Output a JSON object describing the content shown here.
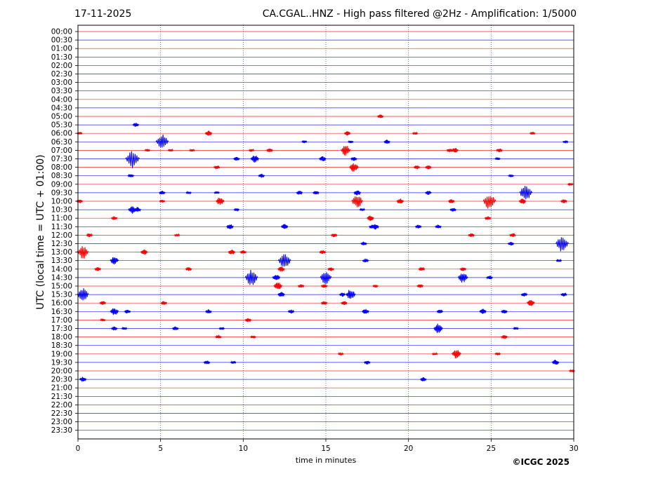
{
  "header": {
    "date": "17-11-2025",
    "title": "CA.CGAL..HNZ - High pass filtered @2Hz - Amplification: 1/5000"
  },
  "footer": {
    "copyright": "©ICGC 2025"
  },
  "chart_data": {
    "type": "line",
    "xlabel": "time in minutes",
    "ylabel": "UTC (local time = UTC + 01:00)",
    "xlim": [
      0,
      30
    ],
    "x_ticks": [
      "0",
      "5",
      "10",
      "15",
      "20",
      "25",
      "30"
    ],
    "x_grid": [
      5,
      10,
      15,
      20,
      25
    ],
    "row_colors": [
      "#ff0000",
      "#0000ff"
    ],
    "rows": [
      "00:00",
      "00:30",
      "01:00",
      "01:30",
      "02:00",
      "02:30",
      "03:00",
      "03:30",
      "04:00",
      "04:30",
      "05:00",
      "05:30",
      "06:00",
      "06:30",
      "07:00",
      "07:30",
      "08:00",
      "08:30",
      "09:00",
      "09:30",
      "10:00",
      "10:30",
      "11:00",
      "11:30",
      "12:00",
      "12:30",
      "13:00",
      "13:30",
      "14:00",
      "14:30",
      "15:00",
      "15:30",
      "16:00",
      "16:30",
      "17:00",
      "17:30",
      "18:00",
      "18:30",
      "19:00",
      "19:30",
      "20:00",
      "20:30",
      "21:00",
      "21:30",
      "22:00",
      "22:30",
      "23:00",
      "23:30"
    ],
    "events": [
      {
        "row": "05:00",
        "t": 18.3,
        "a": 3
      },
      {
        "row": "05:30",
        "t": 3.5,
        "a": 3
      },
      {
        "row": "06:00",
        "t": 0.1,
        "a": 2
      },
      {
        "row": "06:00",
        "t": 7.9,
        "a": 4
      },
      {
        "row": "06:00",
        "t": 16.3,
        "a": 3
      },
      {
        "row": "06:00",
        "t": 20.4,
        "a": 2
      },
      {
        "row": "06:00",
        "t": 27.5,
        "a": 2
      },
      {
        "row": "06:30",
        "t": 5.1,
        "a": 12
      },
      {
        "row": "06:30",
        "t": 13.7,
        "a": 2
      },
      {
        "row": "06:30",
        "t": 16.5,
        "a": 2
      },
      {
        "row": "06:30",
        "t": 18.7,
        "a": 3
      },
      {
        "row": "06:30",
        "t": 29.5,
        "a": 2
      },
      {
        "row": "07:00",
        "t": 4.2,
        "a": 2
      },
      {
        "row": "07:00",
        "t": 5.6,
        "a": 2
      },
      {
        "row": "07:00",
        "t": 6.9,
        "a": 2
      },
      {
        "row": "07:00",
        "t": 10.5,
        "a": 2
      },
      {
        "row": "07:00",
        "t": 11.6,
        "a": 3
      },
      {
        "row": "07:00",
        "t": 16.2,
        "a": 8
      },
      {
        "row": "07:00",
        "t": 22.5,
        "a": 3
      },
      {
        "row": "07:00",
        "t": 22.8,
        "a": 4
      },
      {
        "row": "07:00",
        "t": 25.5,
        "a": 3
      },
      {
        "row": "07:30",
        "t": 3.3,
        "a": 14
      },
      {
        "row": "07:30",
        "t": 9.6,
        "a": 3
      },
      {
        "row": "07:30",
        "t": 10.7,
        "a": 6
      },
      {
        "row": "07:30",
        "t": 14.8,
        "a": 4
      },
      {
        "row": "07:30",
        "t": 16.7,
        "a": 3
      },
      {
        "row": "07:30",
        "t": 25.4,
        "a": 2
      },
      {
        "row": "08:00",
        "t": 8.4,
        "a": 3
      },
      {
        "row": "08:00",
        "t": 16.7,
        "a": 7
      },
      {
        "row": "08:00",
        "t": 20.5,
        "a": 3
      },
      {
        "row": "08:00",
        "t": 21.2,
        "a": 3
      },
      {
        "row": "08:30",
        "t": 3.2,
        "a": 3
      },
      {
        "row": "08:30",
        "t": 11.1,
        "a": 3
      },
      {
        "row": "08:30",
        "t": 26.2,
        "a": 2
      },
      {
        "row": "09:00",
        "t": 29.8,
        "a": 2
      },
      {
        "row": "09:30",
        "t": 5.1,
        "a": 3
      },
      {
        "row": "09:30",
        "t": 6.7,
        "a": 2
      },
      {
        "row": "09:30",
        "t": 8.4,
        "a": 2
      },
      {
        "row": "09:30",
        "t": 13.4,
        "a": 3
      },
      {
        "row": "09:30",
        "t": 14.4,
        "a": 3
      },
      {
        "row": "09:30",
        "t": 16.9,
        "a": 4
      },
      {
        "row": "09:30",
        "t": 21.2,
        "a": 3
      },
      {
        "row": "09:30",
        "t": 27.1,
        "a": 12
      },
      {
        "row": "10:00",
        "t": 0.1,
        "a": 3
      },
      {
        "row": "10:00",
        "t": 5.1,
        "a": 2
      },
      {
        "row": "10:00",
        "t": 8.6,
        "a": 6
      },
      {
        "row": "10:00",
        "t": 16.9,
        "a": 10
      },
      {
        "row": "10:00",
        "t": 19.5,
        "a": 4
      },
      {
        "row": "10:00",
        "t": 22.6,
        "a": 3
      },
      {
        "row": "10:00",
        "t": 24.9,
        "a": 12
      },
      {
        "row": "10:00",
        "t": 26.9,
        "a": 4
      },
      {
        "row": "10:00",
        "t": 29.4,
        "a": 3
      },
      {
        "row": "10:30",
        "t": 3.3,
        "a": 6
      },
      {
        "row": "10:30",
        "t": 3.6,
        "a": 4
      },
      {
        "row": "10:30",
        "t": 9.6,
        "a": 2
      },
      {
        "row": "10:30",
        "t": 17.2,
        "a": 2
      },
      {
        "row": "10:30",
        "t": 22.7,
        "a": 3
      },
      {
        "row": "11:00",
        "t": 2.2,
        "a": 3
      },
      {
        "row": "11:00",
        "t": 17.7,
        "a": 4
      },
      {
        "row": "11:00",
        "t": 24.8,
        "a": 3
      },
      {
        "row": "11:30",
        "t": 9.2,
        "a": 4
      },
      {
        "row": "11:30",
        "t": 12.5,
        "a": 4
      },
      {
        "row": "11:30",
        "t": 17.8,
        "a": 3
      },
      {
        "row": "11:30",
        "t": 18.0,
        "a": 4
      },
      {
        "row": "11:30",
        "t": 20.6,
        "a": 3
      },
      {
        "row": "11:30",
        "t": 21.8,
        "a": 3
      },
      {
        "row": "12:00",
        "t": 0.7,
        "a": 3
      },
      {
        "row": "12:00",
        "t": 6.0,
        "a": 2
      },
      {
        "row": "12:00",
        "t": 15.5,
        "a": 3
      },
      {
        "row": "12:00",
        "t": 23.8,
        "a": 3
      },
      {
        "row": "12:00",
        "t": 26.3,
        "a": 3
      },
      {
        "row": "12:30",
        "t": 17.3,
        "a": 3
      },
      {
        "row": "12:30",
        "t": 26.2,
        "a": 3
      },
      {
        "row": "12:30",
        "t": 29.3,
        "a": 12
      },
      {
        "row": "13:00",
        "t": 0.3,
        "a": 10
      },
      {
        "row": "13:00",
        "t": 4.0,
        "a": 4
      },
      {
        "row": "13:00",
        "t": 9.3,
        "a": 4
      },
      {
        "row": "13:00",
        "t": 10.0,
        "a": 3
      },
      {
        "row": "13:00",
        "t": 14.8,
        "a": 3
      },
      {
        "row": "13:30",
        "t": 2.2,
        "a": 6
      },
      {
        "row": "13:30",
        "t": 12.5,
        "a": 12
      },
      {
        "row": "13:30",
        "t": 17.4,
        "a": 3
      },
      {
        "row": "13:30",
        "t": 29.1,
        "a": 2
      },
      {
        "row": "14:00",
        "t": 1.2,
        "a": 3
      },
      {
        "row": "14:00",
        "t": 6.7,
        "a": 3
      },
      {
        "row": "14:00",
        "t": 12.3,
        "a": 4
      },
      {
        "row": "14:00",
        "t": 15.3,
        "a": 3
      },
      {
        "row": "14:00",
        "t": 20.8,
        "a": 3
      },
      {
        "row": "14:00",
        "t": 23.3,
        "a": 3
      },
      {
        "row": "14:30",
        "t": 10.5,
        "a": 12
      },
      {
        "row": "14:30",
        "t": 12.0,
        "a": 5
      },
      {
        "row": "14:30",
        "t": 15.0,
        "a": 10
      },
      {
        "row": "14:30",
        "t": 23.3,
        "a": 8
      },
      {
        "row": "14:30",
        "t": 24.9,
        "a": 3
      },
      {
        "row": "15:00",
        "t": 12.1,
        "a": 6
      },
      {
        "row": "15:00",
        "t": 13.5,
        "a": 3
      },
      {
        "row": "15:00",
        "t": 14.9,
        "a": 3
      },
      {
        "row": "15:00",
        "t": 18.0,
        "a": 2
      },
      {
        "row": "15:00",
        "t": 20.7,
        "a": 3
      },
      {
        "row": "15:30",
        "t": 0.3,
        "a": 10
      },
      {
        "row": "15:30",
        "t": 12.3,
        "a": 4
      },
      {
        "row": "15:30",
        "t": 16.5,
        "a": 8
      },
      {
        "row": "15:30",
        "t": 16.0,
        "a": 3
      },
      {
        "row": "15:30",
        "t": 27.0,
        "a": 3
      },
      {
        "row": "15:30",
        "t": 29.4,
        "a": 3
      },
      {
        "row": "16:00",
        "t": 1.5,
        "a": 3
      },
      {
        "row": "16:00",
        "t": 5.2,
        "a": 3
      },
      {
        "row": "16:00",
        "t": 14.9,
        "a": 3
      },
      {
        "row": "16:00",
        "t": 16.1,
        "a": 3
      },
      {
        "row": "16:00",
        "t": 27.4,
        "a": 5
      },
      {
        "row": "16:30",
        "t": 2.2,
        "a": 6
      },
      {
        "row": "16:30",
        "t": 3.0,
        "a": 3
      },
      {
        "row": "16:30",
        "t": 7.9,
        "a": 3
      },
      {
        "row": "16:30",
        "t": 12.9,
        "a": 3
      },
      {
        "row": "16:30",
        "t": 17.4,
        "a": 4
      },
      {
        "row": "16:30",
        "t": 21.9,
        "a": 3
      },
      {
        "row": "16:30",
        "t": 24.5,
        "a": 4
      },
      {
        "row": "16:30",
        "t": 25.8,
        "a": 3
      },
      {
        "row": "17:00",
        "t": 1.5,
        "a": 2
      },
      {
        "row": "17:00",
        "t": 10.3,
        "a": 3
      },
      {
        "row": "17:30",
        "t": 2.2,
        "a": 3
      },
      {
        "row": "17:30",
        "t": 2.8,
        "a": 2
      },
      {
        "row": "17:30",
        "t": 5.9,
        "a": 3
      },
      {
        "row": "17:30",
        "t": 8.7,
        "a": 2
      },
      {
        "row": "17:30",
        "t": 21.8,
        "a": 7
      },
      {
        "row": "17:30",
        "t": 26.5,
        "a": 2
      },
      {
        "row": "18:00",
        "t": 8.5,
        "a": 3
      },
      {
        "row": "18:00",
        "t": 10.6,
        "a": 2
      },
      {
        "row": "18:00",
        "t": 25.8,
        "a": 3
      },
      {
        "row": "19:00",
        "t": 15.9,
        "a": 2
      },
      {
        "row": "19:00",
        "t": 21.6,
        "a": 2
      },
      {
        "row": "19:00",
        "t": 22.9,
        "a": 7
      },
      {
        "row": "19:00",
        "t": 25.4,
        "a": 2
      },
      {
        "row": "19:30",
        "t": 7.8,
        "a": 3
      },
      {
        "row": "19:30",
        "t": 9.4,
        "a": 2
      },
      {
        "row": "19:30",
        "t": 17.5,
        "a": 3
      },
      {
        "row": "19:30",
        "t": 28.9,
        "a": 4
      },
      {
        "row": "20:00",
        "t": 29.9,
        "a": 2
      },
      {
        "row": "20:30",
        "t": 0.3,
        "a": 4
      },
      {
        "row": "20:30",
        "t": 20.9,
        "a": 3
      }
    ]
  }
}
